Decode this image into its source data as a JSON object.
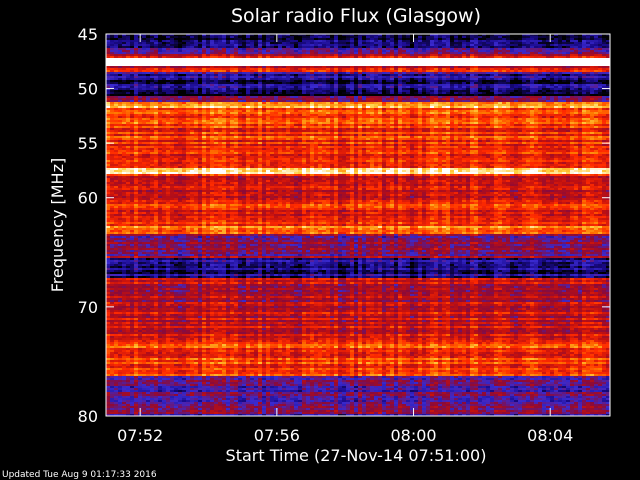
{
  "chart_data": {
    "type": "heatmap",
    "title": "Solar radio Flux (Glasgow)",
    "xlabel": "Start Time (27-Nov-14 07:51:00)",
    "ylabel": "Frequency [MHz]",
    "x_start": "07:51:00",
    "x_end": "08:05:45",
    "xlim_minutes": [
      0,
      14.75
    ],
    "ylim": [
      45,
      80
    ],
    "y_ticks": [
      45,
      50,
      55,
      60,
      70,
      80
    ],
    "x_ticks": [
      {
        "label": "07:52",
        "minutes": 1
      },
      {
        "label": "07:56",
        "minutes": 5
      },
      {
        "label": "08:00",
        "minutes": 9
      },
      {
        "label": "08:04",
        "minutes": 13
      }
    ],
    "colormap": [
      "#000000",
      "#1a0a8c",
      "#3a2ad0",
      "#8a0a3a",
      "#c01010",
      "#ff2a00",
      "#ff7a00",
      "#ffd040",
      "#ffffff"
    ],
    "intensity_bands": [
      {
        "from": 45.0,
        "to": 46.2,
        "level": 0.1
      },
      {
        "from": 46.2,
        "to": 46.8,
        "level": 0.2
      },
      {
        "from": 46.8,
        "to": 47.2,
        "level": 0.55
      },
      {
        "from": 47.2,
        "to": 47.9,
        "level": 1.0
      },
      {
        "from": 47.9,
        "to": 48.4,
        "level": 0.55
      },
      {
        "from": 48.4,
        "to": 49.3,
        "level": 0.2
      },
      {
        "from": 49.3,
        "to": 50.3,
        "level": 0.12
      },
      {
        "from": 50.3,
        "to": 50.7,
        "level": 0.02
      },
      {
        "from": 50.7,
        "to": 51.3,
        "level": 0.3
      },
      {
        "from": 51.3,
        "to": 51.7,
        "level": 0.8
      },
      {
        "from": 51.7,
        "to": 57.3,
        "level": 0.62
      },
      {
        "from": 57.3,
        "to": 57.9,
        "level": 0.88
      },
      {
        "from": 57.9,
        "to": 60.4,
        "level": 0.55
      },
      {
        "from": 60.4,
        "to": 62.6,
        "level": 0.6
      },
      {
        "from": 62.6,
        "to": 63.4,
        "level": 0.7
      },
      {
        "from": 63.4,
        "to": 65.6,
        "level": 0.38
      },
      {
        "from": 65.6,
        "to": 67.4,
        "level": 0.15
      },
      {
        "from": 67.4,
        "to": 71.4,
        "level": 0.48
      },
      {
        "from": 71.4,
        "to": 73.2,
        "level": 0.52
      },
      {
        "from": 73.2,
        "to": 76.4,
        "level": 0.64
      },
      {
        "from": 76.4,
        "to": 80.0,
        "level": 0.3
      }
    ],
    "grid": false
  },
  "footer": {
    "updated": "Updated Tue Aug  9 01:17:33 2016"
  }
}
